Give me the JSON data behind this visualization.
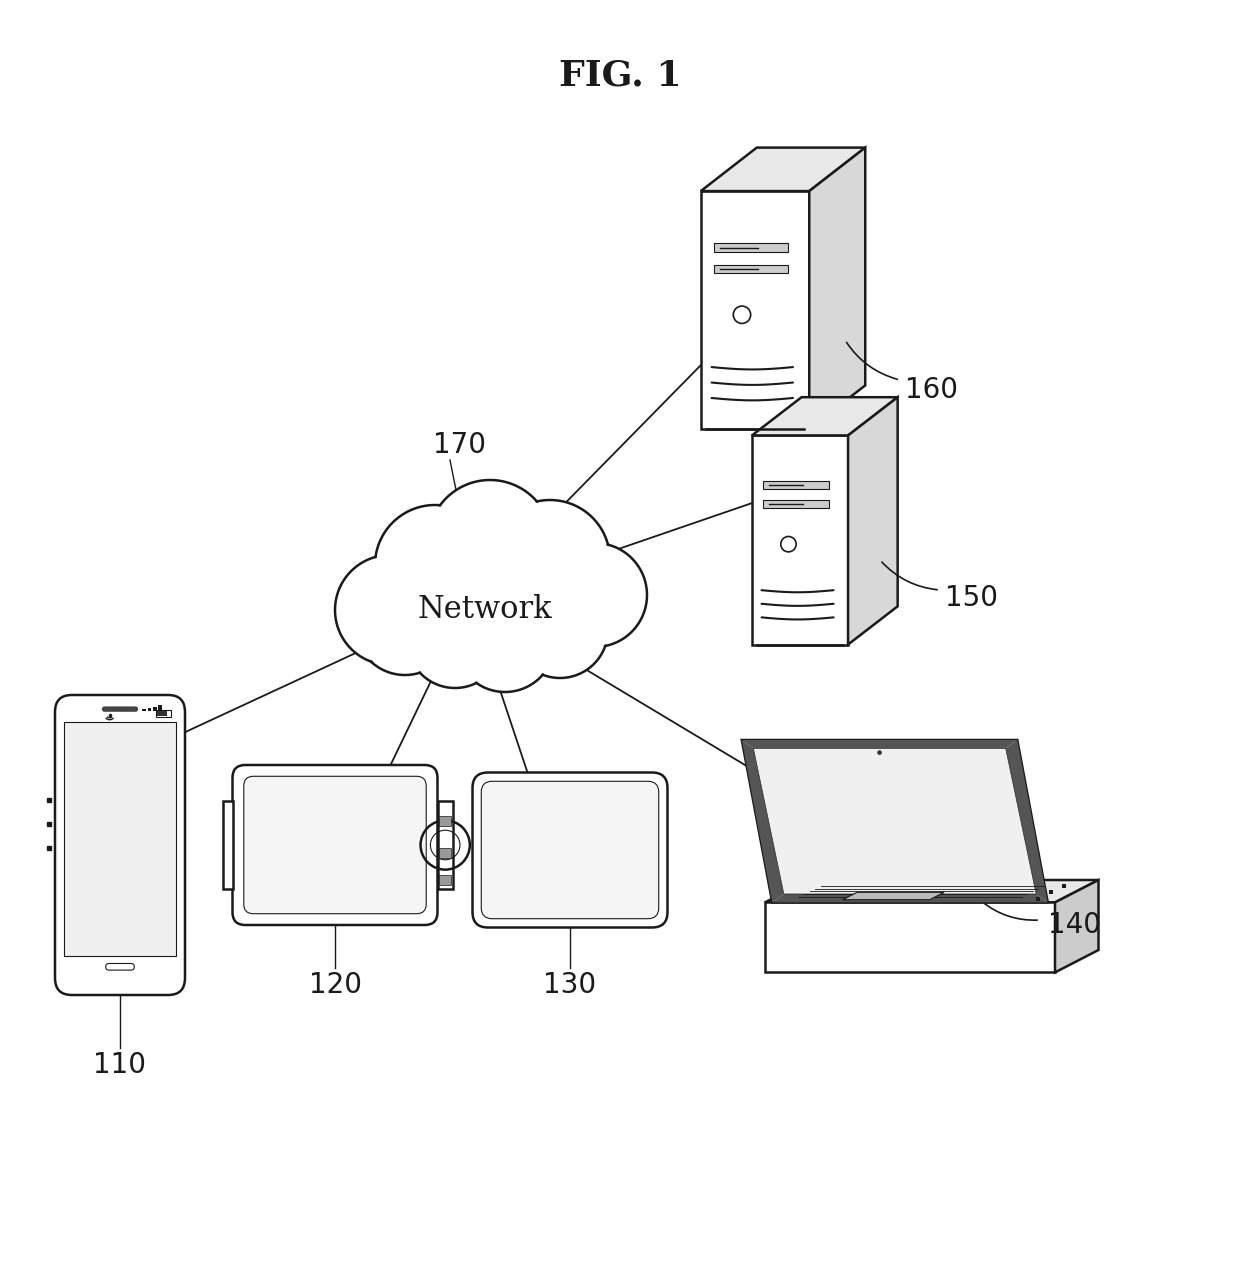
{
  "title": "FIG. 1",
  "title_fontsize": 26,
  "title_fontweight": "bold",
  "background_color": "#ffffff",
  "line_color": "#1a1a1a",
  "text_color": "#1a1a1a",
  "network_label": "Network",
  "network_label_fontsize": 22,
  "label_170": "170",
  "label_160": "160",
  "label_150": "150",
  "label_140": "140",
  "label_130": "130",
  "label_120": "120",
  "label_110": "110",
  "label_fontsize": 20
}
